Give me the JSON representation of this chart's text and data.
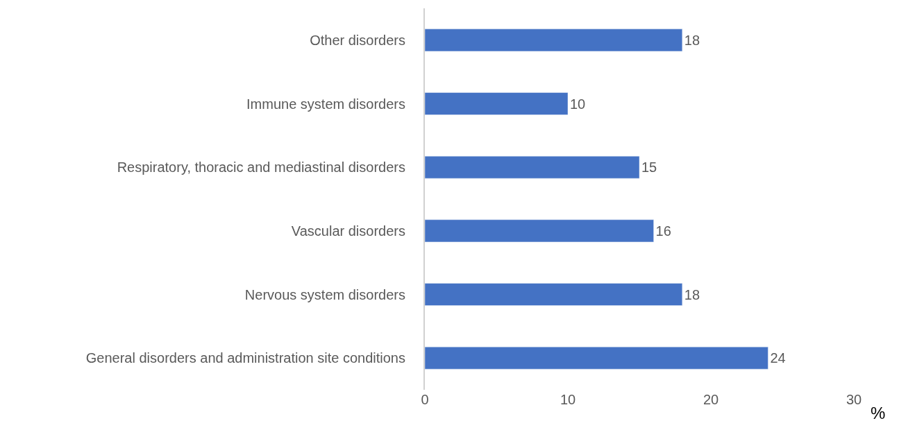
{
  "chart_data": {
    "type": "bar",
    "orientation": "horizontal",
    "categories": [
      "Other disorders",
      "Immune system disorders",
      "Respiratory, thoracic and mediastinal disorders",
      "Vascular disorders",
      "Nervous system disorders",
      "General disorders and administration site conditions"
    ],
    "values": [
      18,
      10,
      15,
      16,
      18,
      24
    ],
    "color": "#4472c4",
    "xlim": [
      0,
      30
    ],
    "xticks": [
      0,
      10,
      20,
      30
    ],
    "xlabel": "%",
    "data_labels": true
  }
}
